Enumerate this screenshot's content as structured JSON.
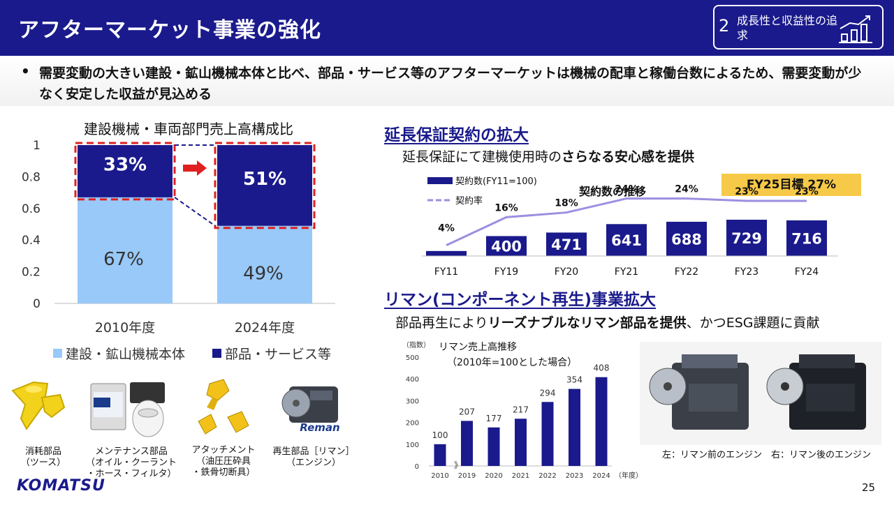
{
  "header": {
    "title": "アフターマーケット事業の強化",
    "badge_number": "2",
    "badge_text": "成長性と収益性の追求",
    "badge_icon": "growth-chart-icon"
  },
  "bullet": "需要変動の大きい建設・鉱山機械本体と比べ、部品・サービス等のアフターマーケットは機械の配車と稼働台数によるため、需要変動が少なく安定した収益が見込める",
  "left": {
    "captions": [
      {
        "line1": "消耗部品",
        "line2": "（ツース）"
      },
      {
        "line1": "メンテナンス部品",
        "line2": "（オイル・クーラント",
        "line3": "・ホース・フィルタ）"
      },
      {
        "line1": "アタッチメント",
        "line2": "（油圧圧砕具",
        "line3": "・鉄骨切断具）"
      },
      {
        "line1": "再生部品［リマン］",
        "line2": "（エンジン）"
      }
    ],
    "reman_logo_text": "Reman"
  },
  "section1": {
    "title": "延長保証契約の拡大",
    "subtitle_plain": "延長保証にて建機使用時の",
    "subtitle_bold": "さらなる安心感を提供",
    "target": "FY25目標 27%"
  },
  "section2": {
    "title": "リマン(コンポーネント再生)事業拡大",
    "subtitle_plain1": "部品再生により",
    "subtitle_bold": "リーズナブルなリマン部品を提供",
    "subtitle_plain2": "、かつESG課題に貢献",
    "engine_caption": "左：リマン前のエンジン　右：リマン後のエンジン"
  },
  "footer": {
    "page": "25",
    "logo": "KOMATSU"
  },
  "chart_data": [
    {
      "type": "bar",
      "stacked": true,
      "title": "建設機械・車両部門売上高構成比",
      "categories": [
        "2010年度",
        "2024年度"
      ],
      "series": [
        {
          "name": "建設・鉱山機械本体",
          "values": [
            0.67,
            0.49
          ],
          "labels": [
            "67%",
            "49%"
          ],
          "color": "#99c9f8"
        },
        {
          "name": "部品・サービス等",
          "values": [
            0.33,
            0.51
          ],
          "labels": [
            "33%",
            "51%"
          ],
          "color": "#1a1a8c"
        }
      ],
      "yticks": [
        "0",
        "0.2",
        "0.4",
        "0.6",
        "0.8",
        "1"
      ],
      "ylim": [
        0,
        1
      ],
      "legend": "bottom",
      "grid": false,
      "highlight_color": "#e02020"
    },
    {
      "type": "bar+line",
      "title": "契約数の推移",
      "categories": [
        "FY11",
        "FY19",
        "FY20",
        "FY21",
        "FY22",
        "FY23",
        "FY24"
      ],
      "series": [
        {
          "name": "契約数(FY11=100)",
          "type": "bar",
          "values": [
            100,
            400,
            471,
            641,
            688,
            729,
            716
          ],
          "labels": [
            "",
            "400",
            "471",
            "641",
            "688",
            "729",
            "716"
          ],
          "color": "#1a1a8c"
        },
        {
          "name": "契約率",
          "type": "line",
          "values": [
            4,
            16,
            18,
            24,
            24,
            23,
            23
          ],
          "labels": [
            "4%",
            "16%",
            "18%",
            "24%",
            "24%",
            "23%",
            "23%"
          ],
          "color": "#9b8fe0"
        }
      ],
      "legend": "top-left"
    },
    {
      "type": "bar",
      "title": "リマン売上高推移",
      "subtitle": "（2010年=100とした場合）",
      "ylabel": "（指数）",
      "xlabel": "（年度）",
      "categories": [
        "2010",
        "2019",
        "2020",
        "2021",
        "2022",
        "2023",
        "2024"
      ],
      "values": [
        100,
        207,
        177,
        217,
        294,
        354,
        408
      ],
      "yticks": [
        "0",
        "100",
        "200",
        "300",
        "400",
        "500"
      ],
      "ylim": [
        0,
        500
      ],
      "axis_break_symbol": "》",
      "color": "#1a1a8c"
    }
  ]
}
